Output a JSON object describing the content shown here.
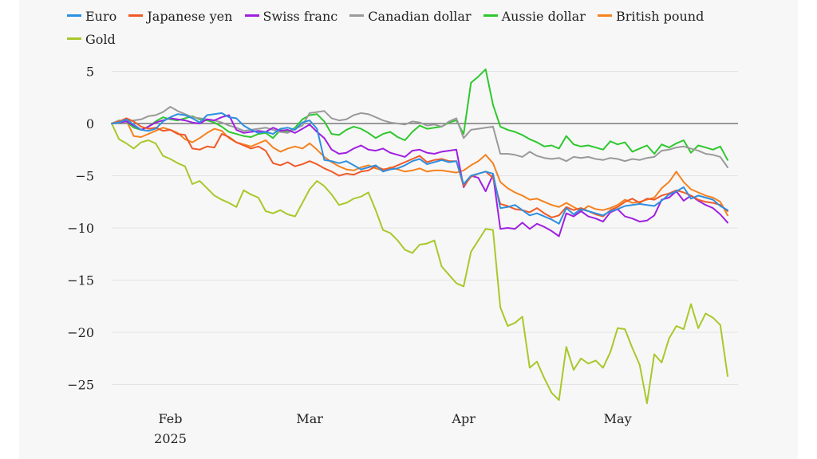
{
  "colors": {
    "background": "#f7f7f7",
    "grid": "#e3e3e3",
    "zero_line": "#7a7a7a",
    "text": "#222222"
  },
  "chart_data": {
    "type": "line",
    "title": "",
    "xlabel": "",
    "ylabel": "",
    "x_unit": "trading day index",
    "xlim": [
      0,
      84
    ],
    "ylim": [
      -28,
      6.5
    ],
    "yticks": [
      5,
      0,
      -5,
      -10,
      -15,
      -20,
      -25
    ],
    "ytick_labels": [
      "5",
      "0",
      "−5",
      "−10",
      "−15",
      "−20",
      "−25"
    ],
    "xticks": [
      {
        "x": 8,
        "label": "Feb",
        "sublabel": "2025"
      },
      {
        "x": 27,
        "label": "Mar",
        "sublabel": ""
      },
      {
        "x": 48,
        "label": "Apr",
        "sublabel": ""
      },
      {
        "x": 69,
        "label": "May",
        "sublabel": ""
      }
    ],
    "grid": "horizontal",
    "legend_position": "top",
    "series": [
      {
        "name": "Euro",
        "color": "#2d8fe0",
        "values": [
          0,
          0.1,
          0.4,
          -0.1,
          -0.6,
          -0.7,
          -0.5,
          0.2,
          0.6,
          0.9,
          0.8,
          0.5,
          0.1,
          0.8,
          0.9,
          1.0,
          0.6,
          0.5,
          -0.2,
          -0.6,
          -0.9,
          -0.8,
          -1.0,
          -0.5,
          -0.4,
          -0.6,
          0.1,
          0.3,
          -0.5,
          -3.5,
          -3.6,
          -3.8,
          -3.6,
          -4.0,
          -4.4,
          -4.2,
          -4.0,
          -4.6,
          -4.4,
          -4.3,
          -4.0,
          -3.6,
          -3.4,
          -3.9,
          -3.7,
          -3.5,
          -3.7,
          -3.6,
          -5.8,
          -5.0,
          -4.8,
          -4.6,
          -4.8,
          -8.1,
          -8.0,
          -7.8,
          -8.3,
          -8.8,
          -8.6,
          -8.9,
          -9.2,
          -9.6,
          -8.1,
          -8.7,
          -8.2,
          -8.4,
          -8.6,
          -8.8,
          -8.4,
          -8.2,
          -7.9,
          -7.8,
          -7.7,
          -7.8,
          -7.9,
          -7.4,
          -6.8,
          -6.5,
          -6.1,
          -7.2,
          -6.9,
          -7.1,
          -7.3,
          -7.9,
          -8.3
        ]
      },
      {
        "name": "Japanese yen",
        "color": "#f05a28",
        "values": [
          0,
          0.2,
          0.5,
          0.2,
          -0.3,
          -0.5,
          -0.4,
          -0.7,
          -0.6,
          -1.0,
          -1.1,
          -2.4,
          -2.5,
          -2.2,
          -2.3,
          -1.0,
          -1.3,
          -1.8,
          -2.1,
          -2.4,
          -2.2,
          -2.6,
          -3.8,
          -4.0,
          -3.7,
          -4.1,
          -3.9,
          -3.6,
          -3.9,
          -4.3,
          -4.6,
          -5.0,
          -4.8,
          -4.9,
          -4.6,
          -4.5,
          -4.1,
          -4.4,
          -4.3,
          -4.0,
          -3.7,
          -3.4,
          -3.1,
          -3.7,
          -3.5,
          -3.4,
          -3.6,
          -3.6,
          -6.0,
          -5.1,
          -4.8,
          -4.6,
          -5.2,
          -7.7,
          -7.9,
          -8.2,
          -8.3,
          -8.5,
          -8.1,
          -8.6,
          -9.0,
          -8.8,
          -8.0,
          -8.3,
          -8.1,
          -8.4,
          -8.7,
          -8.9,
          -8.3,
          -8.0,
          -7.5,
          -7.2,
          -7.6,
          -7.2,
          -7.3,
          -6.9,
          -6.7,
          -6.4,
          -6.6,
          -6.9,
          -7.3,
          -7.5,
          -7.6,
          -7.8,
          -8.4
        ]
      },
      {
        "name": "Swiss franc",
        "color": "#a020e0",
        "values": [
          0,
          0.1,
          0.2,
          -0.2,
          -0.6,
          -0.3,
          0.1,
          0.3,
          0.5,
          0.4,
          0.3,
          0.1,
          0.0,
          0.4,
          0.3,
          0.6,
          0.8,
          -0.6,
          -0.9,
          -0.8,
          -0.7,
          -0.8,
          -0.4,
          -0.7,
          -0.6,
          -0.9,
          -0.5,
          -0.1,
          -0.8,
          -1.4,
          -2.5,
          -2.9,
          -2.8,
          -2.4,
          -2.1,
          -2.5,
          -2.6,
          -2.4,
          -2.8,
          -3.0,
          -3.2,
          -2.6,
          -2.5,
          -2.8,
          -2.9,
          -2.7,
          -2.6,
          -2.5,
          -6.1,
          -5.0,
          -5.2,
          -6.5,
          -4.9,
          -10.1,
          -10.0,
          -10.1,
          -9.5,
          -10.1,
          -9.6,
          -9.9,
          -10.3,
          -10.8,
          -8.6,
          -8.9,
          -8.4,
          -8.9,
          -9.1,
          -9.4,
          -8.5,
          -8.2,
          -8.9,
          -9.1,
          -9.4,
          -9.3,
          -8.8,
          -7.3,
          -7.1,
          -6.5,
          -7.4,
          -6.9,
          -7.4,
          -7.8,
          -8.1,
          -8.7,
          -9.5
        ]
      },
      {
        "name": "Canadian dollar",
        "color": "#9a9a9a",
        "values": [
          0,
          0.3,
          0.2,
          0.3,
          0.4,
          0.7,
          0.8,
          1.1,
          1.6,
          1.2,
          0.9,
          0.6,
          0.5,
          0.4,
          0.3,
          0.1,
          -0.2,
          -0.4,
          -0.7,
          -0.6,
          -0.5,
          -0.4,
          -0.6,
          -0.8,
          -0.9,
          -0.5,
          -0.2,
          1.0,
          1.1,
          1.2,
          0.5,
          0.3,
          0.4,
          0.8,
          1.0,
          0.9,
          0.6,
          0.3,
          0.1,
          0.0,
          -0.1,
          0.2,
          0.1,
          -0.2,
          -0.1,
          -0.3,
          0.2,
          0.5,
          -1.4,
          -0.6,
          -0.5,
          -0.4,
          -0.3,
          -2.9,
          -2.9,
          -3.0,
          -3.2,
          -2.7,
          -3.1,
          -3.3,
          -3.4,
          -3.3,
          -3.6,
          -3.2,
          -3.3,
          -3.2,
          -3.4,
          -3.5,
          -3.3,
          -3.4,
          -3.6,
          -3.4,
          -3.5,
          -3.3,
          -3.2,
          -2.6,
          -2.5,
          -2.3,
          -2.2,
          -2.4,
          -2.6,
          -2.9,
          -3.0,
          -3.2,
          -4.2
        ]
      },
      {
        "name": "Aussie dollar",
        "color": "#2ec82e",
        "values": [
          0,
          0.1,
          0.2,
          -0.4,
          -0.6,
          -0.3,
          0.2,
          0.6,
          0.4,
          0.3,
          0.5,
          0.7,
          0.4,
          0.3,
          0.1,
          -0.3,
          -0.8,
          -1.0,
          -1.2,
          -1.3,
          -1.0,
          -0.9,
          -1.4,
          -0.6,
          -0.8,
          -0.4,
          0.4,
          0.8,
          0.9,
          0.2,
          -1.0,
          -1.1,
          -0.6,
          -0.3,
          -0.5,
          -0.9,
          -1.4,
          -1.0,
          -0.8,
          -1.3,
          -1.6,
          -0.8,
          -0.2,
          -0.5,
          -0.4,
          -0.3,
          0.1,
          0.3,
          -1.0,
          3.9,
          4.5,
          5.2,
          1.8,
          -0.3,
          -0.6,
          -0.8,
          -1.1,
          -1.5,
          -1.8,
          -2.2,
          -2.1,
          -2.4,
          -1.2,
          -2.0,
          -2.2,
          -2.1,
          -2.3,
          -2.5,
          -1.7,
          -2.0,
          -1.8,
          -2.7,
          -2.4,
          -2.1,
          -2.9,
          -2.0,
          -2.3,
          -1.9,
          -1.6,
          -2.8,
          -2.1,
          -2.3,
          -2.5,
          -2.2,
          -3.5
        ]
      },
      {
        "name": "British pound",
        "color": "#f5821f",
        "values": [
          0,
          0.1,
          0.3,
          -1.2,
          -1.3,
          -1.0,
          -0.7,
          -0.4,
          -0.6,
          -0.9,
          -1.5,
          -1.8,
          -1.4,
          -0.9,
          -0.5,
          -0.7,
          -1.4,
          -1.8,
          -2.0,
          -2.2,
          -1.9,
          -1.6,
          -2.3,
          -2.7,
          -2.4,
          -2.2,
          -2.4,
          -1.9,
          -2.5,
          -3.2,
          -3.7,
          -4.1,
          -4.4,
          -4.5,
          -4.2,
          -4.0,
          -4.3,
          -4.5,
          -4.2,
          -4.4,
          -4.6,
          -4.5,
          -4.3,
          -4.6,
          -4.5,
          -4.5,
          -4.6,
          -4.7,
          -4.5,
          -4.0,
          -3.6,
          -3.0,
          -3.8,
          -5.6,
          -6.2,
          -6.6,
          -6.9,
          -7.3,
          -7.2,
          -7.5,
          -7.8,
          -8.0,
          -7.6,
          -8.0,
          -8.4,
          -7.9,
          -8.2,
          -8.3,
          -8.1,
          -7.8,
          -7.3,
          -7.6,
          -7.5,
          -7.3,
          -7.1,
          -6.2,
          -5.6,
          -4.6,
          -5.6,
          -6.3,
          -6.6,
          -6.9,
          -7.1,
          -7.5,
          -8.8
        ]
      },
      {
        "name": "Gold",
        "color": "#a8c82a",
        "values": [
          0,
          -1.5,
          -1.9,
          -2.4,
          -1.8,
          -1.6,
          -1.9,
          -3.1,
          -3.4,
          -3.8,
          -4.1,
          -5.8,
          -5.5,
          -6.2,
          -6.9,
          -7.3,
          -7.6,
          -8.0,
          -6.4,
          -6.8,
          -7.1,
          -8.4,
          -8.6,
          -8.3,
          -8.7,
          -8.9,
          -7.6,
          -6.3,
          -5.5,
          -6.0,
          -6.8,
          -7.8,
          -7.6,
          -7.2,
          -7.0,
          -6.6,
          -8.3,
          -10.2,
          -10.5,
          -11.2,
          -12.1,
          -12.4,
          -11.6,
          -11.5,
          -11.2,
          -13.7,
          -14.5,
          -15.3,
          -15.6,
          -12.3,
          -11.2,
          -10.1,
          -10.2,
          -17.6,
          -19.4,
          -19.1,
          -18.5,
          -23.4,
          -22.8,
          -24.4,
          -25.8,
          -26.5,
          -21.4,
          -23.6,
          -22.5,
          -23.0,
          -22.7,
          -23.4,
          -21.9,
          -19.6,
          -19.7,
          -21.5,
          -23.1,
          -26.8,
          -22.1,
          -22.9,
          -20.6,
          -19.4,
          -19.7,
          -17.3,
          -19.6,
          -18.2,
          -18.6,
          -19.3,
          -24.2
        ]
      }
    ]
  }
}
